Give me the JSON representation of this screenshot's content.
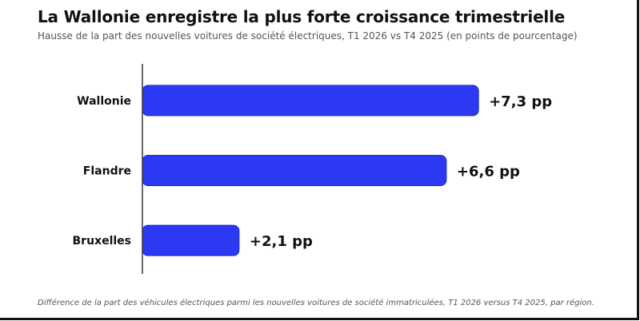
{
  "chart_data": {
    "type": "bar",
    "orientation": "horizontal",
    "title": "La Wallonie enregistre la plus forte croissance trimestrielle",
    "subtitle": "Hausse de la part des nouvelles voitures de société électriques, T1 2026 vs T4 2025 (en points de pourcentage)",
    "categories": [
      "Wallonie",
      "Flandre",
      "Bruxelles"
    ],
    "values": [
      7.3,
      6.6,
      2.1
    ],
    "value_labels": [
      "+7,3 pp",
      "+6,6 pp",
      "+2,1 pp"
    ],
    "xlim": [
      0,
      8.2
    ],
    "grid": false,
    "legend": "none",
    "bar_color": "#2b3af2",
    "bar_edge_color": "#1a28c8",
    "footnote": "Différence de la part des véhicules électriques parmi les nouvelles voitures de société immatriculées, T1 2026 versus T4 2025, par région."
  }
}
